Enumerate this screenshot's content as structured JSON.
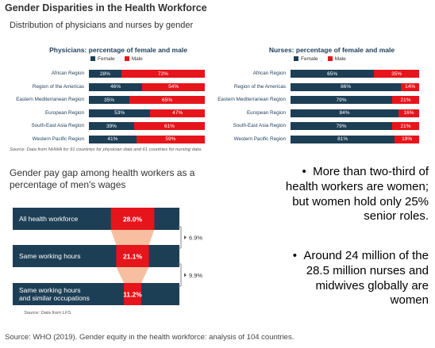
{
  "title": "Gender Disparities in the Health Workforce",
  "subtitle": "Distribution of physicians and nurses by gender",
  "legend": {
    "female": "Female",
    "male": "Male"
  },
  "colors": {
    "female": "#1d3f55",
    "male": "#e6141b",
    "pay_gap_connector": "#f7bfa0"
  },
  "top_source": "Source: Data from NHWA for 91 countries for physician data and 61 countries for nursing data.",
  "pay_gap_title_line1": "Gender pay gap among health workers as a",
  "pay_gap_title_line2": "percentage of men's wages",
  "pay_gap_source": "Source: Data from LFS.",
  "bullets": [
    [
      "More than two-third of",
      "health workers are women;",
      "but women hold only 25%",
      "senior roles."
    ],
    [
      "Around 24 million of the",
      "28.5 million nurses and",
      "midwives globally are",
      "women"
    ]
  ],
  "bullet_symbol": "•",
  "footer": "Source: WHO (2019). Gender equity in the health workforce: analysis of 104 countries.",
  "chart_data": [
    {
      "type": "bar",
      "title": "Physicians: percentage of female and male",
      "categories": [
        "African Region",
        "Region of the Americas",
        "Eastern Mediterranean Region",
        "European Region",
        "South-East Asia Region",
        "Western Pacific Region"
      ],
      "series": [
        {
          "name": "Female",
          "values": [
            28,
            46,
            35,
            53,
            39,
            41
          ],
          "labels": [
            "28%",
            "46%",
            "35%",
            "53%",
            "39%",
            "41%"
          ]
        },
        {
          "name": "Male",
          "values": [
            72,
            54,
            65,
            47,
            61,
            59
          ],
          "labels": [
            "72%",
            "54%",
            "65%",
            "47%",
            "61%",
            "59%"
          ]
        }
      ],
      "stacked": true,
      "orientation": "horizontal",
      "xlim": [
        0,
        100
      ]
    },
    {
      "type": "bar",
      "title": "Nurses: percentage of female and male",
      "categories": [
        "African Region",
        "Region of the Americas",
        "Eastern Mediterranean Region",
        "European Region",
        "South-East Asia Region",
        "Western Pacific Region"
      ],
      "series": [
        {
          "name": "Female",
          "values": [
            65,
            86,
            79,
            84,
            79,
            81
          ],
          "labels": [
            "65%",
            "86%",
            "79%",
            "84%",
            "79%",
            "81%"
          ]
        },
        {
          "name": "Male",
          "values": [
            35,
            14,
            21,
            16,
            21,
            19
          ],
          "labels": [
            "35%",
            "14%",
            "21%",
            "16%",
            "21%",
            "19%"
          ]
        }
      ],
      "stacked": true,
      "orientation": "horizontal",
      "xlim": [
        0,
        100
      ]
    },
    {
      "type": "bar",
      "title": "Gender pay gap among health workers as a percentage of men's wages",
      "categories": [
        "All health workforce",
        "Same working hours",
        "Same working hours and similar occupations"
      ],
      "category_lines": [
        [
          "All health workforce"
        ],
        [
          "Same working hours"
        ],
        [
          "Same working hours",
          "and similar occupations"
        ]
      ],
      "values": [
        28.0,
        21.1,
        11.2
      ],
      "labels": [
        "28.0%",
        "21.1%",
        "11.2%"
      ],
      "differences": [
        6.9,
        9.9
      ],
      "difference_labels": [
        "6.9%",
        "9.9%"
      ]
    }
  ]
}
